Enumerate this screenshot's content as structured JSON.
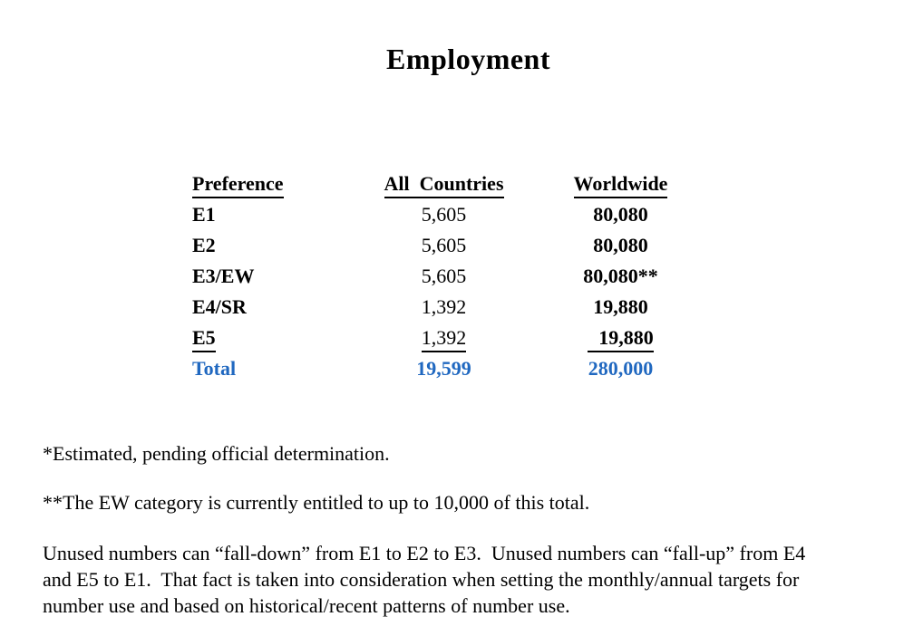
{
  "page": {
    "title": "Employment"
  },
  "table": {
    "headers": [
      {
        "label": "Preference"
      },
      {
        "label": "All  Countries"
      },
      {
        "label": "Worldwide"
      }
    ],
    "rows": [
      {
        "preference": "E1",
        "all_countries": "5,605",
        "worldwide": "80,080"
      },
      {
        "preference": "E2",
        "all_countries": "5,605",
        "worldwide": "80,080"
      },
      {
        "preference": "E3/EW",
        "all_countries": "5,605",
        "worldwide": "80,080**"
      },
      {
        "preference": "E4/SR",
        "all_countries": "1,392",
        "worldwide": "19,880"
      },
      {
        "preference": "E5",
        "all_countries": "1,392",
        "worldwide": "19,880"
      }
    ],
    "total_row": {
      "label": "Total",
      "all_countries": "19,599",
      "worldwide": "280,000"
    }
  },
  "footnotes": [
    {
      "text": "*Estimated, pending official determination."
    },
    {
      "text": "**The EW category is currently entitled to up to 10,000 of this total."
    }
  ],
  "paragraph": {
    "lines": [
      "Unused numbers can “fall-down” from E1 to E2 to E3.  Unused numbers can “fall-up” from E4",
      "and E5 to E1.  That fact is taken into consideration when setting the monthly/annual targets for",
      "number use and based on historical/recent patterns of number use."
    ]
  },
  "colors": {
    "total_blue": "#2068C0",
    "text": "#000000"
  }
}
